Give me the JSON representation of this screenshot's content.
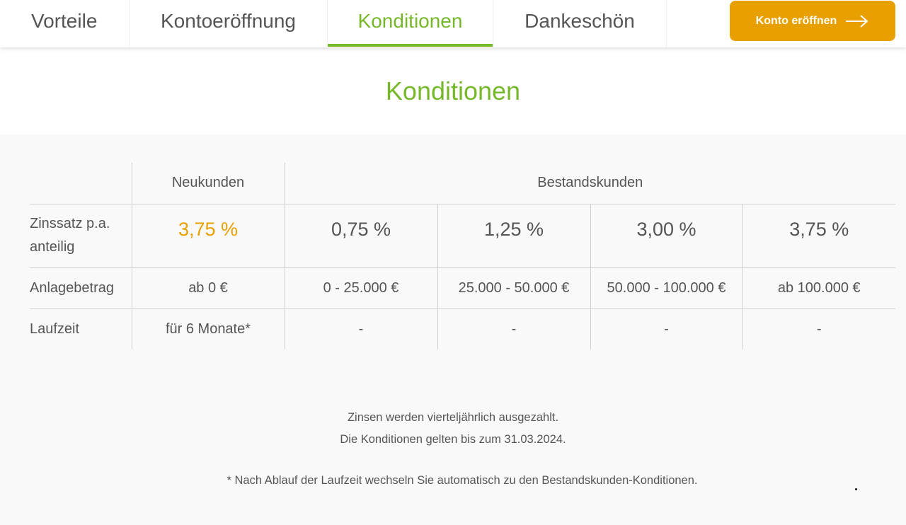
{
  "nav": {
    "tabs": [
      {
        "label": "Vorteile"
      },
      {
        "label": "Kontoeröffnung"
      },
      {
        "label": "Konditionen"
      },
      {
        "label": "Dankeschön"
      }
    ],
    "active_tab": "Konditionen",
    "cta_label": "Konto eröffnen",
    "cta_icon": "arrow-right-icon"
  },
  "colors": {
    "accent_green": "#76b82a",
    "accent_orange": "#e8a000",
    "text": "#555555",
    "panel_bg": "#f9f9f9"
  },
  "page_title": "Konditionen",
  "table": {
    "group_headers": {
      "new": "Neukunden",
      "existing": "Bestandskunden"
    },
    "rows": {
      "rate": {
        "label": "Zinssatz p.a. anteilig",
        "cells": [
          "3,75 %",
          "0,75 %",
          "1,25 %",
          "3,00 %",
          "3,75 %"
        ]
      },
      "amount": {
        "label": "Anlagebetrag",
        "cells": [
          "ab 0 €",
          "0 - 25.000 €",
          "25.000 - 50.000 €",
          "50.000 - 100.000 €",
          "ab 100.000 €"
        ]
      },
      "term": {
        "label": "Laufzeit",
        "cells": [
          "für 6 Monate*",
          "-",
          "-",
          "-",
          "-"
        ]
      }
    }
  },
  "notes": {
    "line1": "Zinsen werden vierteljährlich ausgezahlt.",
    "line2": "Die Konditionen gelten bis zum 31.03.2024.",
    "footnote": "* Nach Ablauf der Laufzeit wechseln Sie automatisch zu den Bestandskunden-Konditionen."
  }
}
